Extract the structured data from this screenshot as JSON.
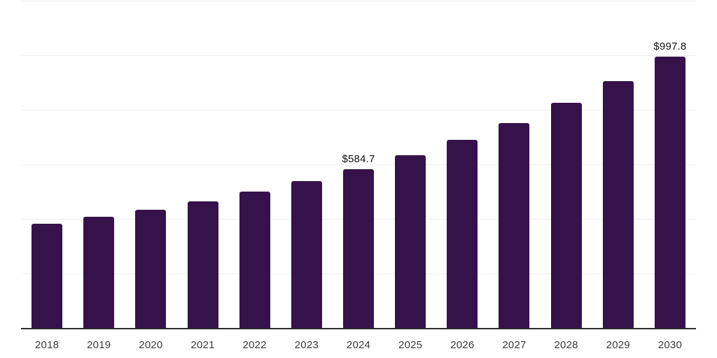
{
  "chart_data": {
    "type": "bar",
    "title": "",
    "xlabel": "",
    "ylabel": "",
    "categories": [
      "2018",
      "2019",
      "2020",
      "2021",
      "2022",
      "2023",
      "2024",
      "2025",
      "2026",
      "2027",
      "2028",
      "2029",
      "2030"
    ],
    "values": [
      384,
      409,
      435,
      467,
      502,
      540,
      584.7,
      636,
      693,
      755,
      827,
      908,
      997.8
    ],
    "data_labels": [
      {
        "category": "2024",
        "text": "$584.7"
      },
      {
        "category": "2030",
        "text": "$997.8"
      }
    ],
    "currency_prefix": "$",
    "ylim": [
      0,
      1200
    ],
    "gridline_values": [
      200,
      400,
      600,
      800,
      1000,
      1200
    ],
    "grid": "horizontal",
    "legend": "none",
    "y_axis_tick_labels": "none"
  },
  "style": {
    "background_color": "#ffffff",
    "bar_color": "#36124b",
    "grid_color": "#f0f0f2",
    "axis_color": "#2e2e2e",
    "tick_label_color": "#3a3a3a",
    "data_label_color": "#111111"
  }
}
